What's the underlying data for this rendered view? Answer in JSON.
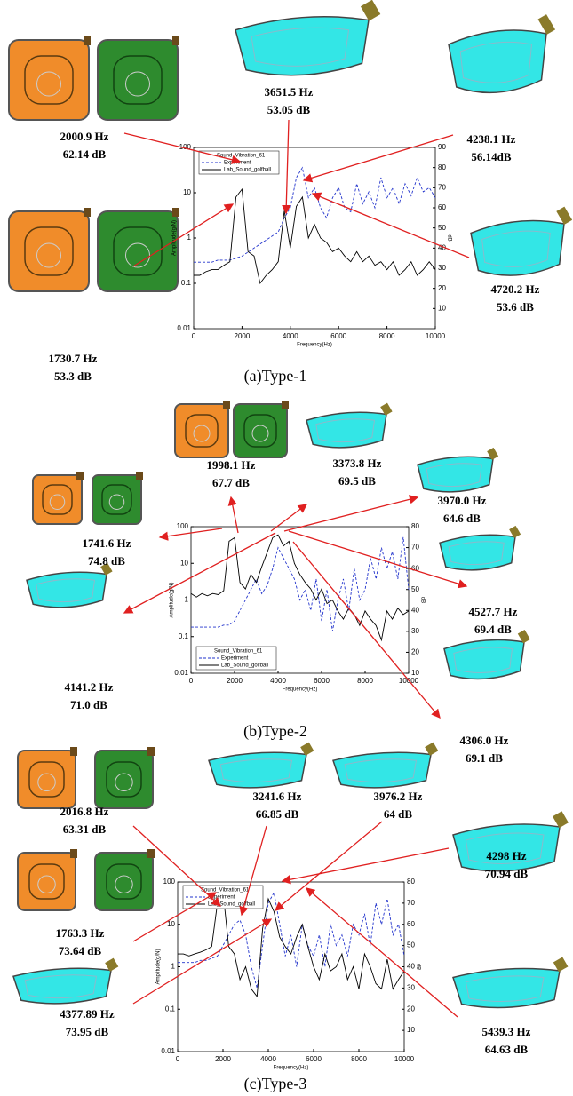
{
  "chart_data": [
    {
      "type": "line",
      "caption": "(a)Type-1",
      "x_label": "Frequency(Hz)",
      "y_label": "Amplitude(g/N)",
      "y2_label": "dB",
      "log_y": true,
      "legend_title": "Sound_Vibration_61",
      "legend": "upper left",
      "xlim": [
        0,
        10000
      ],
      "xticks": [
        0,
        2000,
        4000,
        6000,
        8000,
        10000
      ],
      "ylim": [
        0.01,
        100
      ],
      "yticks": [
        0.01,
        0.1,
        1,
        10,
        100
      ],
      "y2lim": [
        0,
        90
      ],
      "y2ticks": [
        10,
        20,
        30,
        40,
        50,
        60,
        70,
        80,
        90
      ],
      "x": [
        0,
        250,
        500,
        750,
        1000,
        1250,
        1500,
        1750,
        2000,
        2250,
        2500,
        2750,
        3000,
        3250,
        3500,
        3750,
        4000,
        4250,
        4500,
        4750,
        5000,
        5250,
        5500,
        5750,
        6000,
        6250,
        6500,
        6750,
        7000,
        7250,
        7500,
        7750,
        8000,
        8250,
        8500,
        8750,
        9000,
        9250,
        9500,
        9750,
        10000
      ],
      "series": [
        {
          "name": "Experiment",
          "color": "#2233cc",
          "dash": true,
          "axis": "y2",
          "values": [
            33,
            33,
            33,
            33,
            34,
            34,
            34,
            35,
            36,
            38,
            40,
            42,
            44,
            46,
            48,
            55,
            60,
            75,
            80,
            65,
            70,
            60,
            55,
            65,
            70,
            60,
            58,
            72,
            62,
            68,
            60,
            75,
            65,
            70,
            62,
            72,
            66,
            75,
            68,
            70,
            65
          ]
        },
        {
          "name": "Lab_Sound_golfball",
          "color": "#000000",
          "dash": false,
          "values": [
            0.15,
            0.15,
            0.18,
            0.2,
            0.2,
            0.25,
            0.3,
            8,
            12,
            0.5,
            0.4,
            0.1,
            0.15,
            0.2,
            0.3,
            4,
            0.6,
            5,
            8,
            1,
            2,
            1,
            0.8,
            0.5,
            0.6,
            0.4,
            0.3,
            0.5,
            0.3,
            0.4,
            0.25,
            0.3,
            0.2,
            0.3,
            0.15,
            0.2,
            0.3,
            0.15,
            0.2,
            0.3,
            0.2
          ]
        }
      ],
      "annotations": [
        {
          "frequency": "2000.9 Hz",
          "level": "62.14 dB"
        },
        {
          "frequency": "1730.7 Hz",
          "level": "53.3 dB"
        },
        {
          "frequency": "3651.5 Hz",
          "level": "53.05 dB"
        },
        {
          "frequency": "4238.1 Hz",
          "level": "56.14dB"
        },
        {
          "frequency": "4720.2 Hz",
          "level": "53.6 dB"
        }
      ]
    },
    {
      "type": "line",
      "caption": "(b)Type-2",
      "x_label": "Frequency(Hz)",
      "y_label": "Amplitude(g/N)",
      "y2_label": "dB",
      "log_y": true,
      "legend_title": "Sound_Vibration_61",
      "legend": "lower left",
      "xlim": [
        0,
        10000
      ],
      "xticks": [
        0,
        2000,
        4000,
        6000,
        8000,
        10000
      ],
      "ylim": [
        0.01,
        100
      ],
      "yticks": [
        0.01,
        0.1,
        1,
        10,
        100
      ],
      "y2lim": [
        10,
        80
      ],
      "y2ticks": [
        10,
        20,
        30,
        40,
        50,
        60,
        70,
        80
      ],
      "x": [
        0,
        250,
        500,
        750,
        1000,
        1250,
        1500,
        1750,
        2000,
        2250,
        2500,
        2750,
        3000,
        3250,
        3500,
        3750,
        4000,
        4250,
        4500,
        4750,
        5000,
        5250,
        5500,
        5750,
        6000,
        6250,
        6500,
        6750,
        7000,
        7250,
        7500,
        7750,
        8000,
        8250,
        8500,
        8750,
        9000,
        9250,
        9500,
        9750,
        10000
      ],
      "series": [
        {
          "name": "Experiment",
          "color": "#2233cc",
          "dash": true,
          "axis": "y2",
          "values": [
            32,
            32,
            32,
            32,
            32,
            32,
            33,
            33,
            35,
            40,
            45,
            50,
            55,
            48,
            52,
            60,
            70,
            65,
            60,
            55,
            45,
            50,
            40,
            55,
            35,
            50,
            30,
            45,
            55,
            40,
            60,
            45,
            50,
            65,
            55,
            70,
            60,
            68,
            55,
            75,
            50
          ]
        },
        {
          "name": "Lab_Sound_golfball",
          "color": "#000000",
          "dash": false,
          "values": [
            1.5,
            1.2,
            1.5,
            1.3,
            1.5,
            1.4,
            1.8,
            40,
            50,
            3,
            2,
            5,
            3,
            8,
            20,
            50,
            60,
            30,
            40,
            10,
            5,
            3,
            2,
            1,
            2,
            0.8,
            1,
            0.5,
            0.3,
            0.6,
            0.4,
            0.2,
            0.5,
            0.3,
            0.2,
            0.08,
            0.5,
            0.3,
            0.6,
            0.4,
            0.5
          ]
        }
      ],
      "annotations": [
        {
          "frequency": "1998.1 Hz",
          "level": "67.7 dB"
        },
        {
          "frequency": "3373.8 Hz",
          "level": "69.5 dB"
        },
        {
          "frequency": "3970.0 Hz",
          "level": "64.6 dB"
        },
        {
          "frequency": "1741.6 Hz",
          "level": "74.8 dB"
        },
        {
          "frequency": "4527.7 Hz",
          "level": "69.4 dB"
        },
        {
          "frequency": "4141.2 Hz",
          "level": "71.0 dB"
        },
        {
          "frequency": "4306.0 Hz",
          "level": "69.1 dB"
        }
      ]
    },
    {
      "type": "line",
      "caption": "(c)Type-3",
      "x_label": "Frequency(Hz)",
      "y_label": "Amplitude(g/N)",
      "y2_label": "dB",
      "log_y": true,
      "legend_title": "Sound_Vibration_61",
      "legend": "upper left",
      "xlim": [
        0,
        10000
      ],
      "xticks": [
        0,
        2000,
        4000,
        6000,
        8000,
        10000
      ],
      "ylim": [
        0.01,
        100
      ],
      "yticks": [
        0.01,
        0.1,
        1,
        10,
        100
      ],
      "y2lim": [
        0,
        80
      ],
      "y2ticks": [
        10,
        20,
        30,
        40,
        50,
        60,
        70,
        80
      ],
      "x": [
        0,
        250,
        500,
        750,
        1000,
        1250,
        1500,
        1750,
        2000,
        2250,
        2500,
        2750,
        3000,
        3250,
        3500,
        3750,
        4000,
        4250,
        4500,
        4750,
        5000,
        5250,
        5500,
        5750,
        6000,
        6250,
        6500,
        6750,
        7000,
        7250,
        7500,
        7750,
        8000,
        8250,
        8500,
        8750,
        9000,
        9250,
        9500,
        9750,
        10000
      ],
      "series": [
        {
          "name": "Experiment",
          "color": "#2233cc",
          "dash": true,
          "axis": "y2",
          "values": [
            42,
            42,
            42,
            42,
            43,
            43,
            44,
            45,
            50,
            55,
            60,
            62,
            55,
            40,
            30,
            50,
            70,
            75,
            60,
            45,
            55,
            40,
            60,
            50,
            45,
            55,
            40,
            60,
            50,
            55,
            45,
            60,
            55,
            65,
            50,
            70,
            60,
            72,
            55,
            60,
            45
          ]
        },
        {
          "name": "Lab_Sound_golfball",
          "color": "#000000",
          "dash": false,
          "values": [
            2,
            2,
            1.8,
            2,
            2.2,
            2.5,
            3,
            30,
            60,
            3,
            2,
            0.5,
            1,
            0.3,
            0.2,
            8,
            40,
            20,
            5,
            3,
            2,
            5,
            10,
            3,
            1,
            0.5,
            2,
            0.8,
            1,
            2,
            0.5,
            1,
            0.3,
            2,
            1,
            0.4,
            0.3,
            1.5,
            0.3,
            0.5,
            0.8
          ]
        }
      ],
      "annotations": [
        {
          "frequency": "2016.8 Hz",
          "level": "63.31 dB"
        },
        {
          "frequency": "3241.6 Hz",
          "level": "66.85 dB"
        },
        {
          "frequency": "3976.2 Hz",
          "level": "64 dB"
        },
        {
          "frequency": "4298 Hz",
          "level": "70.94 dB"
        },
        {
          "frequency": "1763.3 Hz",
          "level": "73.64 dB"
        },
        {
          "frequency": "4377.89 Hz",
          "level": "73.95 dB"
        },
        {
          "frequency": "5439.3 Hz",
          "level": "64.63 dB"
        }
      ]
    }
  ]
}
